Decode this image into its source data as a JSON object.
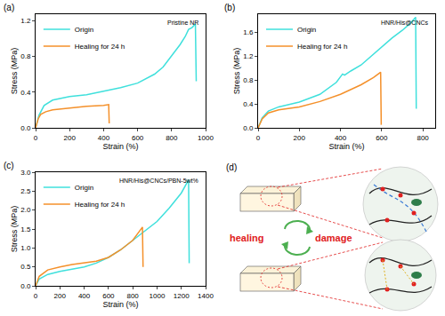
{
  "chart_data": [
    {
      "type": "line",
      "panel": "(a)",
      "annotation": "Pristine NR",
      "x_label": "Strain (%)",
      "y_label": "Stress (MPa)",
      "xlim": [
        0,
        1000
      ],
      "xticks": [
        0,
        200,
        400,
        600,
        800,
        1000
      ],
      "ylim": [
        0,
        1.27
      ],
      "yticks": [
        {
          "value": 0,
          "label": "0.0"
        },
        {
          "value": 0.4,
          "label": "0.4"
        },
        {
          "value": 0.8,
          "label": "0.8"
        },
        {
          "value": 1.2,
          "label": "1.2"
        }
      ],
      "legend": "upper left",
      "grid": false,
      "series": [
        {
          "name": "Origin",
          "color": "#3fe0dc",
          "x": [
            0,
            20,
            50,
            100,
            200,
            300,
            400,
            500,
            600,
            700,
            750,
            800,
            850,
            880,
            900,
            920,
            940,
            945
          ],
          "values": [
            0,
            0.14,
            0.25,
            0.31,
            0.35,
            0.37,
            0.41,
            0.45,
            0.5,
            0.6,
            0.68,
            0.8,
            0.93,
            1.02,
            1.1,
            1.12,
            1.16,
            0.52
          ]
        },
        {
          "name": "Healing for 24 h",
          "color": "#f4902a",
          "x": [
            0,
            15,
            30,
            60,
            100,
            200,
            300,
            400,
            430,
            433
          ],
          "values": [
            0,
            0.1,
            0.15,
            0.18,
            0.2,
            0.22,
            0.24,
            0.25,
            0.26,
            0.05
          ]
        }
      ]
    },
    {
      "type": "line",
      "panel": "(b)",
      "annotation": "HNR/His@CNCs",
      "x_label": "Strain (%)",
      "y_label": "Stress (MPa)",
      "xlim": [
        0,
        860
      ],
      "xticks": [
        0,
        200,
        400,
        600,
        800
      ],
      "ylim": [
        0,
        1.9
      ],
      "yticks": [
        {
          "value": 0,
          "label": "0.0"
        },
        {
          "value": 0.4,
          "label": "0.4"
        },
        {
          "value": 0.8,
          "label": "0.8"
        },
        {
          "value": 1.2,
          "label": "1.2"
        },
        {
          "value": 1.6,
          "label": "1.6"
        }
      ],
      "legend": "upper left",
      "grid": false,
      "series": [
        {
          "name": "Origin",
          "color": "#3fe0dc",
          "x": [
            0,
            20,
            50,
            100,
            200,
            300,
            380,
            410,
            420,
            450,
            500,
            550,
            600,
            650,
            700,
            740,
            765,
            768
          ],
          "values": [
            0,
            0.17,
            0.28,
            0.35,
            0.43,
            0.56,
            0.76,
            0.9,
            0.88,
            0.95,
            1.05,
            1.2,
            1.35,
            1.5,
            1.63,
            1.75,
            1.85,
            0.32
          ]
        },
        {
          "name": "Healing for 24 h",
          "color": "#f4902a",
          "x": [
            0,
            20,
            50,
            100,
            200,
            300,
            400,
            500,
            560,
            595,
            598
          ],
          "values": [
            0,
            0.15,
            0.25,
            0.3,
            0.35,
            0.44,
            0.56,
            0.72,
            0.84,
            0.93,
            0.05
          ]
        }
      ]
    },
    {
      "type": "line",
      "panel": "(c)",
      "annotation": "HNR/His@CNCs/PBN-5wt%",
      "x_label": "Strain (%)",
      "y_label": "Stress (MPa)",
      "xlim": [
        0,
        1400
      ],
      "xticks": [
        0,
        200,
        400,
        600,
        800,
        1000,
        1200,
        1400
      ],
      "ylim": [
        0,
        3.0
      ],
      "yticks": [
        {
          "value": 0,
          "label": "0.0"
        },
        {
          "value": 0.5,
          "label": "0.5"
        },
        {
          "value": 1.0,
          "label": "1.0"
        },
        {
          "value": 1.5,
          "label": "1.5"
        },
        {
          "value": 2.0,
          "label": "2.0"
        },
        {
          "value": 2.5,
          "label": "2.5"
        },
        {
          "value": 3.0,
          "label": "3.0"
        }
      ],
      "legend": "upper left",
      "grid": false,
      "series": [
        {
          "name": "Origin",
          "color": "#3fe0dc",
          "x": [
            0,
            30,
            100,
            200,
            300,
            400,
            500,
            600,
            700,
            800,
            900,
            1000,
            1100,
            1200,
            1260,
            1265
          ],
          "values": [
            0,
            0.18,
            0.3,
            0.38,
            0.44,
            0.5,
            0.6,
            0.75,
            0.95,
            1.2,
            1.45,
            1.7,
            2.05,
            2.45,
            2.8,
            0.6
          ]
        },
        {
          "name": "Healing for 24 h",
          "color": "#f4902a",
          "x": [
            0,
            30,
            100,
            200,
            300,
            400,
            500,
            600,
            650,
            700,
            800,
            880,
            885
          ],
          "values": [
            0,
            0.25,
            0.42,
            0.5,
            0.56,
            0.6,
            0.65,
            0.75,
            0.85,
            0.95,
            1.2,
            1.55,
            0.5
          ]
        }
      ]
    }
  ],
  "diagram": {
    "panel": "(d)",
    "healing": "healing",
    "damage": "damage"
  }
}
